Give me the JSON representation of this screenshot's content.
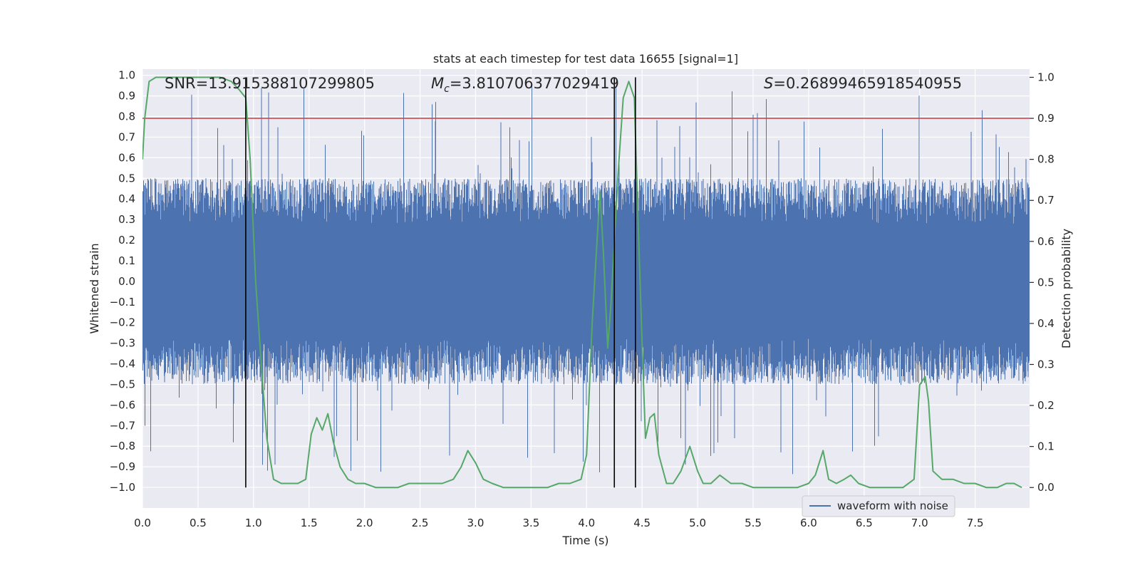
{
  "chart_data": {
    "type": "line",
    "title": "stats at each timestep for test data 16655 [signal=1]",
    "xlabel": "Time (s)",
    "ylabel": "Whitened strain",
    "y2label": "Detection probability",
    "xlim": [
      0,
      7.99
    ],
    "ylim": [
      -1.1,
      1.03
    ],
    "y2lim": [
      -0.05,
      1.02
    ],
    "xticks": [
      "0.0",
      "0.5",
      "1.0",
      "1.5",
      "2.0",
      "2.5",
      "3.0",
      "3.5",
      "4.0",
      "4.5",
      "5.0",
      "5.5",
      "6.0",
      "6.5",
      "7.0",
      "7.5"
    ],
    "yticks": [
      "1.0",
      "0.9",
      "0.8",
      "0.7",
      "0.6",
      "0.5",
      "0.4",
      "0.3",
      "0.2",
      "0.1",
      "0.0",
      "-0.1",
      "-0.2",
      "-0.3",
      "-0.4",
      "-0.5",
      "-0.6",
      "-0.7",
      "-0.8",
      "-0.9",
      "-1.0"
    ],
    "y2ticks": [
      "1.0",
      "0.9",
      "0.8",
      "0.7",
      "0.6",
      "0.5",
      "0.4",
      "0.3",
      "0.2",
      "0.1",
      "0.0"
    ],
    "annotations": {
      "snr": "SNR=13.915388107299805",
      "mc_symbol": "M",
      "mc_sub": "c",
      "mc_value": "=3.810706377029419",
      "s_symbol": "S",
      "s_value": "=0.26899465918540955"
    },
    "legend": {
      "label": "waveform with noise",
      "loc": "lower-right"
    },
    "threshold_prob": 0.9,
    "vertical_lines_s": [
      0.93,
      4.25,
      4.44
    ],
    "strain": {
      "name": "waveform with noise",
      "color": "#4c72b0",
      "duration_s": 7.99,
      "envelope_upper": 0.5,
      "envelope_lower": -0.5,
      "peak_max": 0.97,
      "trough_min": -0.98
    },
    "probability": {
      "color": "#55a868",
      "x": [
        0.0,
        0.02,
        0.06,
        0.12,
        0.2,
        0.3,
        0.4,
        0.5,
        0.6,
        0.7,
        0.8,
        0.87,
        0.93,
        0.97,
        1.02,
        1.07,
        1.12,
        1.18,
        1.25,
        1.32,
        1.4,
        1.47,
        1.52,
        1.57,
        1.62,
        1.67,
        1.72,
        1.78,
        1.85,
        1.92,
        2.0,
        2.1,
        2.2,
        2.3,
        2.4,
        2.5,
        2.6,
        2.7,
        2.8,
        2.87,
        2.93,
        3.0,
        3.07,
        3.15,
        3.25,
        3.35,
        3.5,
        3.65,
        3.75,
        3.85,
        3.95,
        4.0,
        4.05,
        4.12,
        4.15,
        4.19,
        4.22,
        4.25,
        4.28,
        4.33,
        4.38,
        4.43,
        4.47,
        4.5,
        4.53,
        4.57,
        4.61,
        4.65,
        4.72,
        4.78,
        4.85,
        4.93,
        5.0,
        5.05,
        5.12,
        5.2,
        5.3,
        5.4,
        5.5,
        5.6,
        5.7,
        5.8,
        5.9,
        6.0,
        6.06,
        6.13,
        6.18,
        6.25,
        6.32,
        6.38,
        6.45,
        6.55,
        6.65,
        6.75,
        6.85,
        6.95,
        7.0,
        7.05,
        7.08,
        7.12,
        7.2,
        7.3,
        7.4,
        7.5,
        7.6,
        7.7,
        7.78,
        7.85,
        7.92
      ],
      "y": [
        0.8,
        0.9,
        0.99,
        1.0,
        1.0,
        1.0,
        1.0,
        1.0,
        1.0,
        1.0,
        0.99,
        0.97,
        0.95,
        0.8,
        0.5,
        0.3,
        0.12,
        0.02,
        0.01,
        0.01,
        0.01,
        0.02,
        0.13,
        0.17,
        0.14,
        0.18,
        0.11,
        0.05,
        0.02,
        0.01,
        0.01,
        0.0,
        0.0,
        0.0,
        0.01,
        0.01,
        0.01,
        0.01,
        0.02,
        0.05,
        0.09,
        0.06,
        0.02,
        0.01,
        0.0,
        0.0,
        0.0,
        0.0,
        0.01,
        0.01,
        0.02,
        0.08,
        0.4,
        0.72,
        0.58,
        0.34,
        0.45,
        0.6,
        0.75,
        0.95,
        0.99,
        0.95,
        0.6,
        0.35,
        0.12,
        0.17,
        0.18,
        0.08,
        0.01,
        0.01,
        0.04,
        0.1,
        0.04,
        0.01,
        0.01,
        0.03,
        0.01,
        0.01,
        0.0,
        0.0,
        0.0,
        0.0,
        0.0,
        0.01,
        0.03,
        0.09,
        0.02,
        0.01,
        0.02,
        0.03,
        0.01,
        0.0,
        0.0,
        0.0,
        0.0,
        0.02,
        0.25,
        0.27,
        0.21,
        0.04,
        0.02,
        0.02,
        0.01,
        0.01,
        0.0,
        0.0,
        0.01,
        0.01,
        0.0
      ]
    }
  }
}
